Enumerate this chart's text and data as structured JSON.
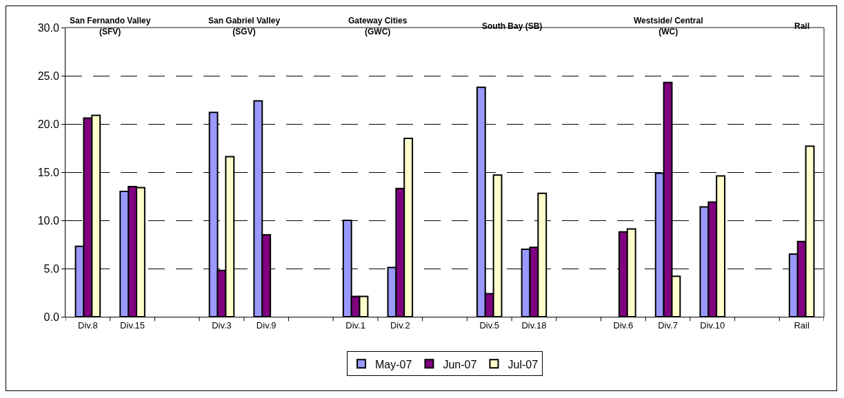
{
  "chart_data": {
    "type": "bar",
    "categories": [
      "Div.8",
      "Div.15",
      null,
      "Div.3",
      "Div.9",
      null,
      "Div.1",
      "Div.2",
      null,
      "Div.5",
      "Div.18",
      null,
      "Div.6",
      "Div.7",
      "Div.10",
      null,
      "Rail"
    ],
    "series": [
      {
        "name": "May-07",
        "color": "#9999ff",
        "values": [
          7.3,
          13.0,
          null,
          21.2,
          22.4,
          null,
          10.0,
          5.1,
          null,
          23.8,
          7.0,
          null,
          null,
          14.9,
          11.4,
          null,
          6.5
        ]
      },
      {
        "name": "Jun-07",
        "color": "#800080",
        "values": [
          20.6,
          13.5,
          null,
          4.8,
          8.5,
          null,
          2.1,
          13.3,
          null,
          2.4,
          7.2,
          null,
          8.8,
          24.3,
          11.9,
          null,
          7.8
        ]
      },
      {
        "name": "Jul-07",
        "color": "#ffffcc",
        "values": [
          20.9,
          13.4,
          null,
          16.6,
          null,
          null,
          2.1,
          18.5,
          null,
          14.7,
          12.8,
          null,
          9.1,
          4.2,
          14.6,
          null,
          17.7
        ]
      }
    ],
    "annotations": [
      "San Fernando Valley\n(SFV)",
      "San Gabriel Valley\n(SGV)",
      "Gateway Cities\n(GWC)",
      "South Bay (SB)",
      "Westside/ Central\n(WC)",
      "Rail"
    ],
    "ylim": [
      0,
      30
    ],
    "yticks": [
      {
        "value": 0,
        "label": "0.0"
      },
      {
        "value": 5,
        "label": "5.0"
      },
      {
        "value": 10,
        "label": "10.0"
      },
      {
        "value": 15,
        "label": "15.0"
      },
      {
        "value": 20,
        "label": "20.0"
      },
      {
        "value": 25,
        "label": "25.0"
      },
      {
        "value": 30,
        "label": "30.0"
      }
    ],
    "grid": "y",
    "legend": "bottom"
  }
}
